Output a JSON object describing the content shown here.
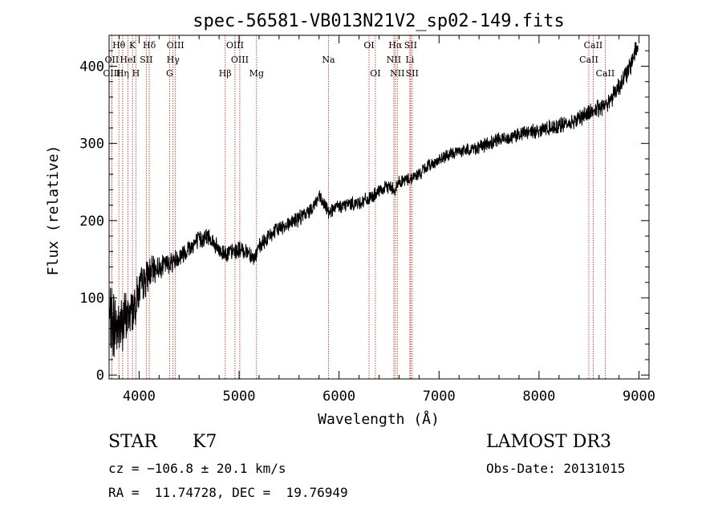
{
  "chart_data": {
    "type": "line",
    "title": "spec-56581-VB013N21V2_sp02-149.fits",
    "xlabel": "Wavelength (Å)",
    "ylabel": "Flux (relative)",
    "xlim": [
      3700,
      9100
    ],
    "ylim": [
      -5,
      440
    ],
    "xticks": [
      4000,
      5000,
      6000,
      7000,
      8000,
      9000
    ],
    "yticks": [
      0,
      100,
      200,
      300,
      400
    ],
    "grid": false,
    "series": [
      {
        "name": "flux",
        "anchors_x": [
          3700,
          3800,
          3900,
          3960,
          4000,
          4100,
          4200,
          4300,
          4400,
          4500,
          4600,
          4700,
          4800,
          4900,
          5000,
          5100,
          5150,
          5200,
          5300,
          5400,
          5500,
          5600,
          5700,
          5800,
          5850,
          5900,
          6000,
          6100,
          6200,
          6300,
          6400,
          6500,
          6560,
          6600,
          6700,
          6800,
          6900,
          7000,
          7100,
          7200,
          7300,
          7400,
          7500,
          7600,
          7700,
          7800,
          7900,
          8000,
          8100,
          8200,
          8300,
          8400,
          8500,
          8600,
          8700,
          8800,
          8900,
          8960,
          8990
        ],
        "anchors_y": [
          70,
          62,
          78,
          92,
          110,
          132,
          140,
          145,
          153,
          165,
          175,
          180,
          160,
          158,
          162,
          160,
          150,
          165,
          180,
          190,
          197,
          203,
          212,
          230,
          220,
          212,
          218,
          222,
          223,
          228,
          237,
          245,
          240,
          250,
          254,
          260,
          272,
          278,
          285,
          290,
          292,
          295,
          300,
          305,
          308,
          312,
          315,
          317,
          320,
          323,
          326,
          333,
          340,
          345,
          355,
          375,
          395,
          420,
          425
        ],
        "noise_profile_x": [
          3700,
          3950,
          4200,
          5200,
          6000,
          7000,
          8000,
          9000
        ],
        "noise_profile_amp": [
          45,
          26,
          12,
          9,
          8,
          7,
          8,
          12
        ]
      }
    ],
    "lines": [
      {
        "label": "Hθ",
        "wavelength": 3798,
        "row": 0
      },
      {
        "label": "OII",
        "wavelength": 3727,
        "row": 1
      },
      {
        "label": "OIII",
        "wavelength": 3727,
        "row": 2
      },
      {
        "label": "K",
        "wavelength": 3934,
        "row": 0
      },
      {
        "label": "HeI",
        "wavelength": 3889,
        "row": 1
      },
      {
        "label": "Hη",
        "wavelength": 3835,
        "row": 2
      },
      {
        "label": "H",
        "wavelength": 3968,
        "row": 2
      },
      {
        "label": "SII",
        "wavelength": 4072,
        "row": 1
      },
      {
        "label": "Hδ",
        "wavelength": 4102,
        "row": 0
      },
      {
        "label": "OIII",
        "wavelength": 4363,
        "row": 0
      },
      {
        "label": "Hγ",
        "wavelength": 4340,
        "row": 1
      },
      {
        "label": "G",
        "wavelength": 4305,
        "row": 2
      },
      {
        "label": "Hβ",
        "wavelength": 4861,
        "row": 2
      },
      {
        "label": "OIII",
        "wavelength": 4959,
        "row": 0
      },
      {
        "label": "OIII",
        "wavelength": 5007,
        "row": 1
      },
      {
        "label": "Mg",
        "wavelength": 5175,
        "row": 2
      },
      {
        "label": "Na",
        "wavelength": 5894,
        "row": 1
      },
      {
        "label": "OI",
        "wavelength": 6300,
        "row": 0
      },
      {
        "label": "OI",
        "wavelength": 6363,
        "row": 2
      },
      {
        "label": "Hα",
        "wavelength": 6563,
        "row": 0
      },
      {
        "label": "NII",
        "wavelength": 6548,
        "row": 1
      },
      {
        "label": "NII",
        "wavelength": 6583,
        "row": 2
      },
      {
        "label": "SII",
        "wavelength": 6716,
        "row": 0
      },
      {
        "label": "Li",
        "wavelength": 6708,
        "row": 1
      },
      {
        "label": "SII",
        "wavelength": 6731,
        "row": 2
      },
      {
        "label": "CaII",
        "wavelength": 8542,
        "row": 0
      },
      {
        "label": "CaII",
        "wavelength": 8498,
        "row": 1
      },
      {
        "label": "CaII",
        "wavelength": 8662,
        "row": 2
      }
    ]
  },
  "info": {
    "class": "STAR",
    "subclass": "K7",
    "survey": "LAMOST DR3",
    "cz": "cz = −106.8 ± 20.1 km/s",
    "obs_date": "Obs-Date: 20131015",
    "coords": "RA =  11.74728, DEC =  19.76949"
  },
  "colors": {
    "axes": "#000000",
    "spectrum": "#000000",
    "lines": "#c0392b"
  }
}
